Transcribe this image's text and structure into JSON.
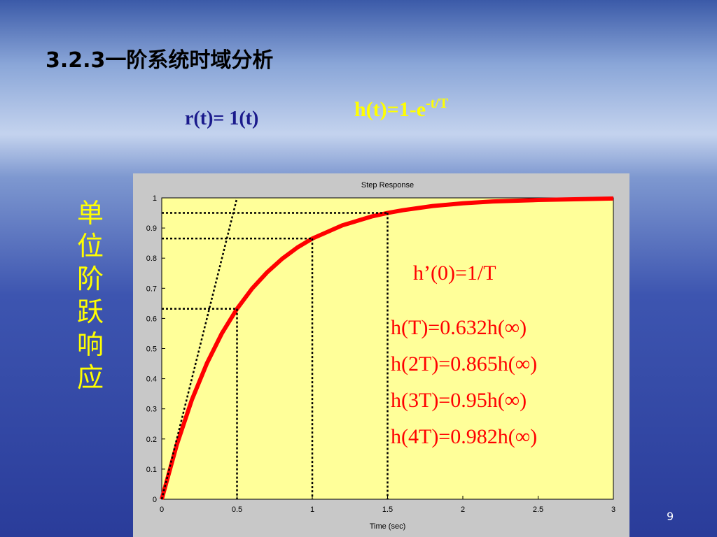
{
  "slide": {
    "title": "3.2.3一阶系统时域分析",
    "input": "r(t)= 1(t)",
    "response": "h(t)=1-e",
    "response_exponent": "-t/T",
    "side_label": [
      "单",
      "位",
      "阶",
      "跃",
      "响",
      "应"
    ],
    "derivative": "h’(0)=1/T",
    "points": [
      "h(T)=0.632h(∞)",
      "h(2T)=0.865h(∞)",
      "h(3T)=0.95h(∞)",
      "h(4T)=0.982h(∞)"
    ],
    "page_number": "9"
  },
  "chart_data": {
    "type": "line",
    "title": "Step Response",
    "x_label": "Time (sec)",
    "x": [
      0,
      0.1,
      0.2,
      0.3,
      0.4,
      0.5,
      0.6,
      0.7,
      0.8,
      0.9,
      1.0,
      1.2,
      1.4,
      1.5,
      1.6,
      1.8,
      2.0,
      2.2,
      2.5,
      2.8,
      3.0
    ],
    "series": [
      {
        "color": "#ff0000",
        "values": [
          0,
          0.181,
          0.33,
          0.451,
          0.551,
          0.632,
          0.699,
          0.753,
          0.798,
          0.835,
          0.865,
          0.909,
          0.939,
          0.95,
          0.959,
          0.973,
          0.982,
          0.988,
          0.993,
          0.996,
          0.998
        ]
      }
    ],
    "tangent": {
      "x": [
        0,
        0.5
      ],
      "values": [
        0,
        1
      ]
    },
    "guides": [
      {
        "x": 0.5,
        "y": 0.632
      },
      {
        "x": 1,
        "y": 0.865
      },
      {
        "x": 1.5,
        "y": 0.95
      }
    ],
    "xlim": [
      0,
      3
    ],
    "ylim": [
      0,
      1
    ],
    "xticks": [
      0,
      0.5,
      1,
      1.5,
      2,
      2.5,
      3
    ],
    "yticks": [
      0,
      0.1,
      0.2,
      0.3,
      0.4,
      0.5,
      0.6,
      0.7,
      0.8,
      0.9,
      1
    ],
    "plot_color": "#ffff99"
  }
}
